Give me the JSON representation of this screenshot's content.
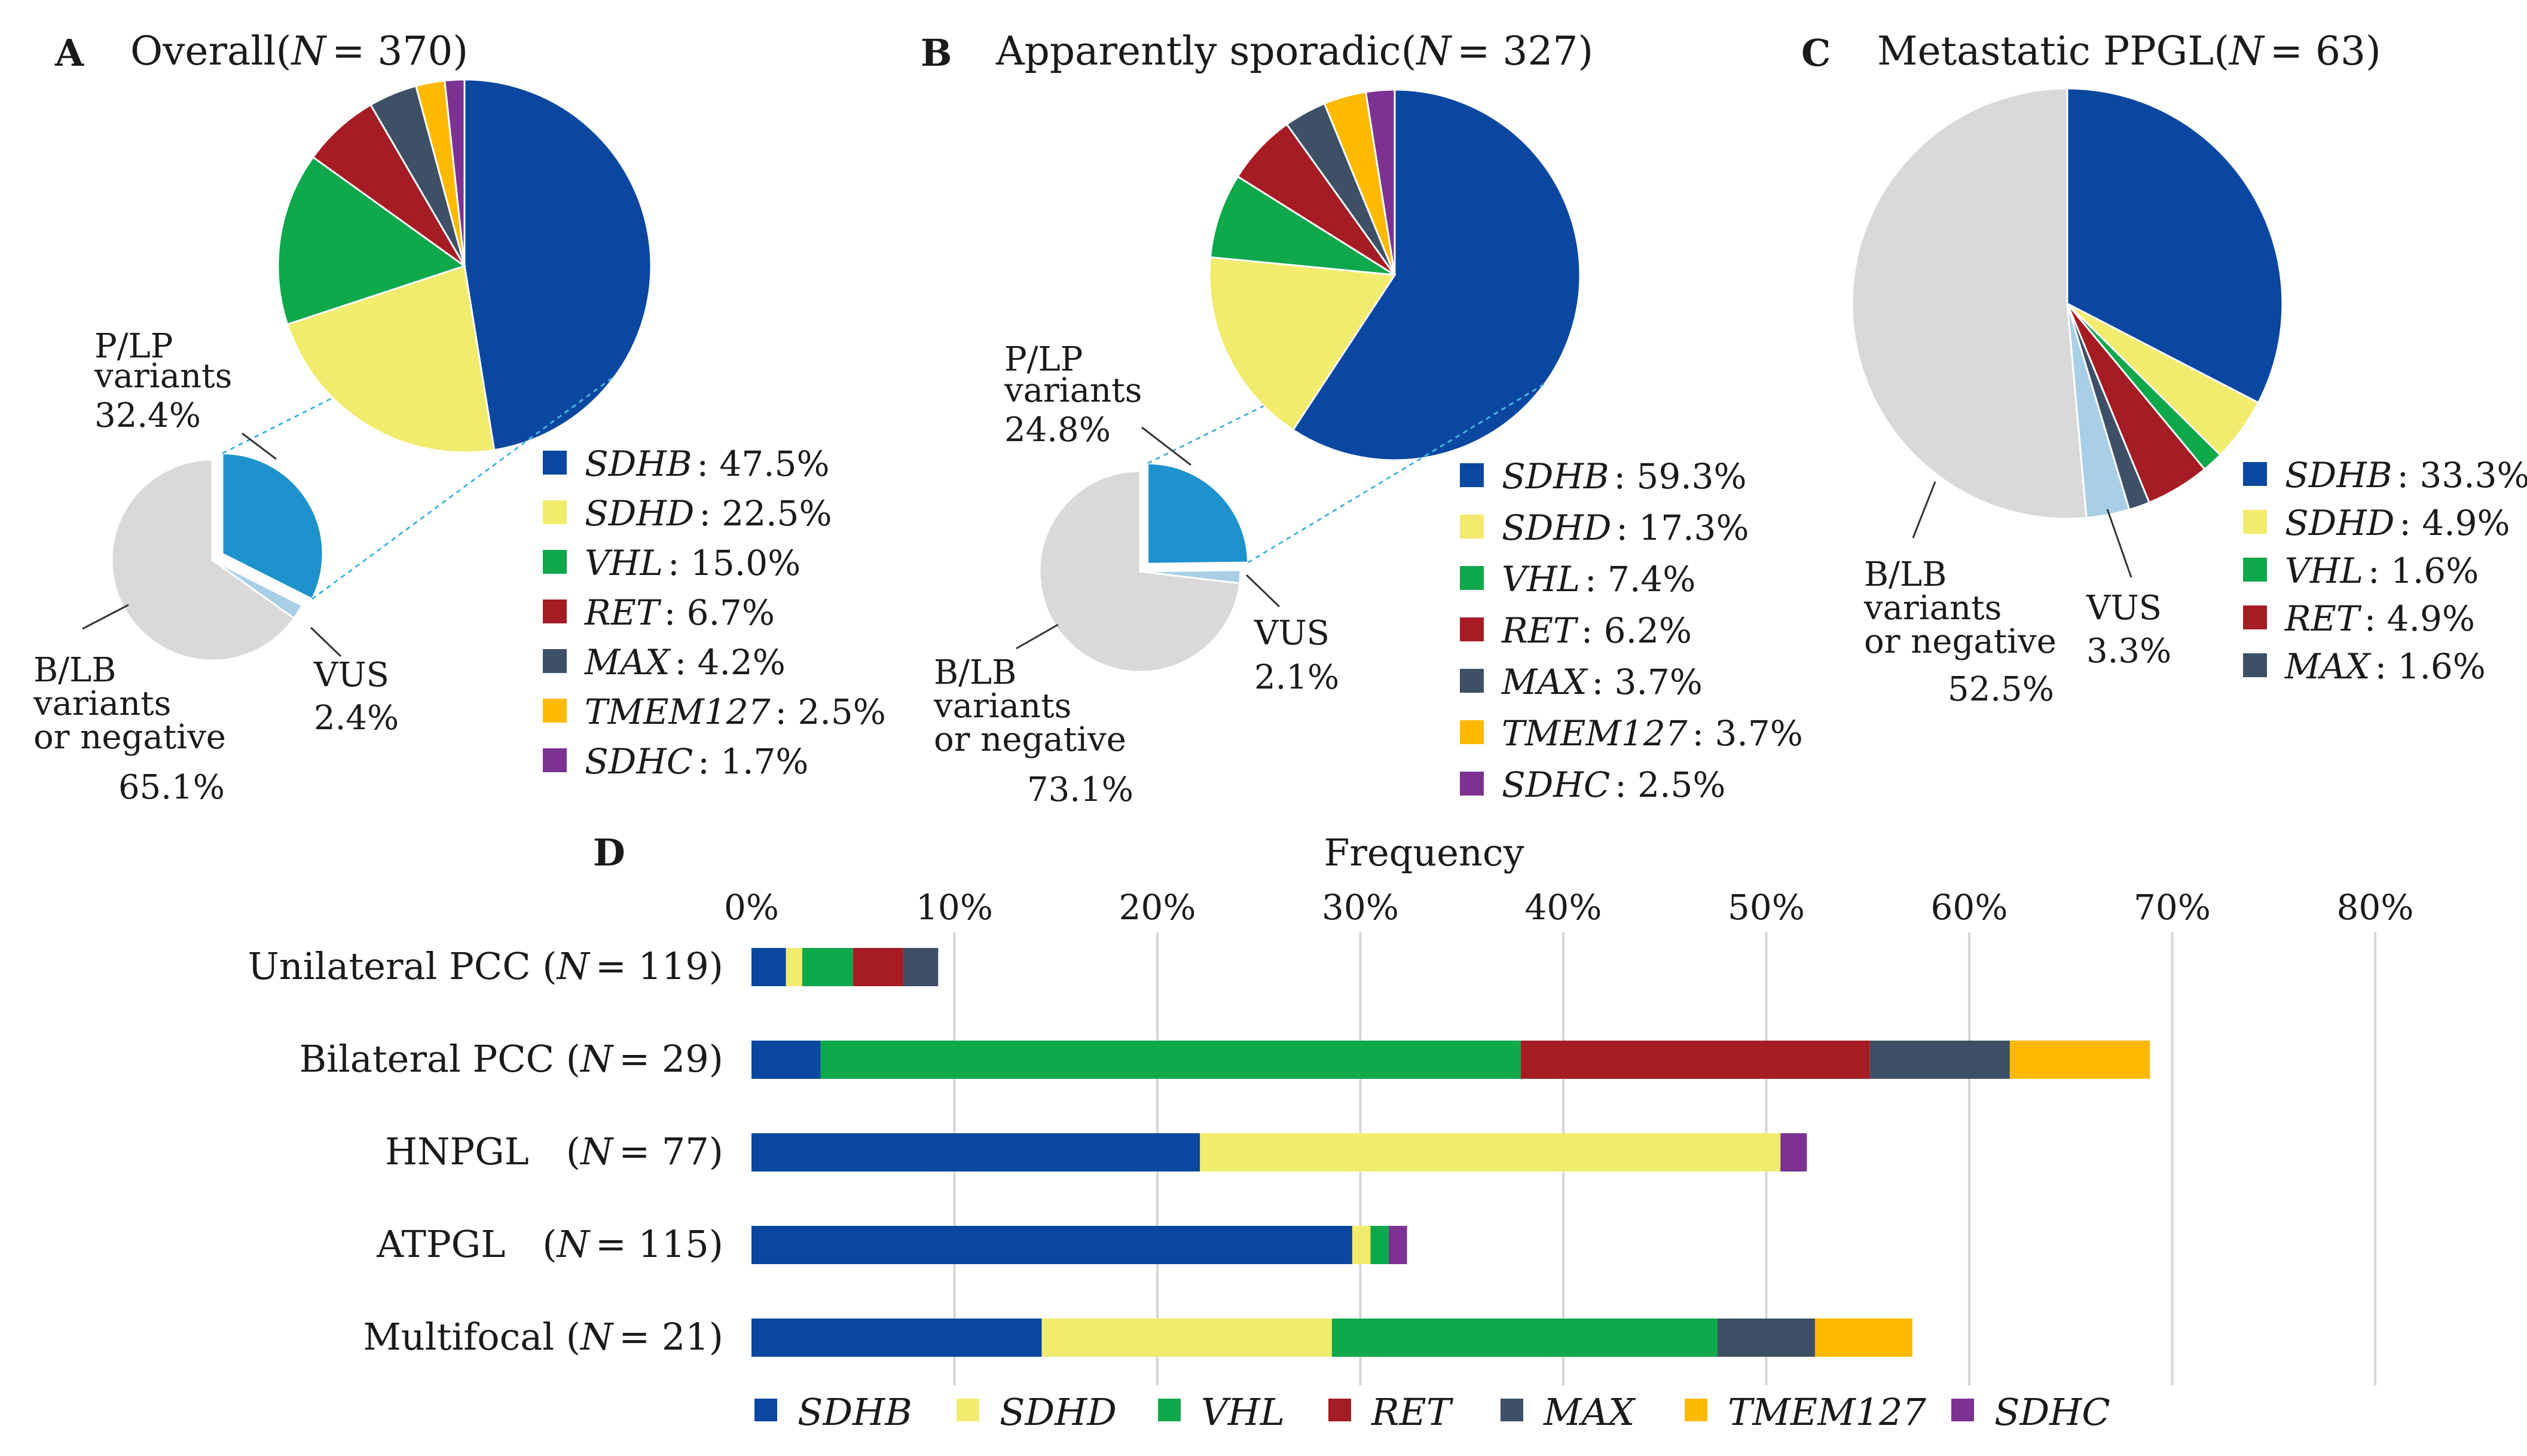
{
  "colors": {
    "SDHB": "#0a47a0",
    "SDHD": "#f2ec6e",
    "VHL": "#0fa84b",
    "RET": "#a51c24",
    "MAX": "#3d5065",
    "TMEM127": "#ffb900",
    "SDHC": "#7b3292",
    "PLP": "#1e92cc",
    "VUS": "#a8cfe6",
    "BLB": "#d9d9d9",
    "grid": "#d6d6d6",
    "leader": "#45b4e0"
  },
  "chart_data": [
    {
      "type": "pie",
      "panel": "A",
      "title": "Overall",
      "n_label": "N",
      "n_value": "= 370)",
      "title_open": "(",
      "outer_slices": [
        {
          "name": "B/LB variants or negative",
          "value": 65.1
        },
        {
          "name": "P/LP variants",
          "value": 32.4
        },
        {
          "name": "VUS",
          "value": 2.4
        }
      ],
      "outer_labels": {
        "plp_line1": "P/LP",
        "plp_line2": "variants",
        "plp_pct": "32.4%",
        "vus": "VUS",
        "vus_pct": "2.4%",
        "blb_line1": "B/LB",
        "blb_line2": "variants",
        "blb_line3": "or negative",
        "blb_pct": "65.1%"
      },
      "inner_slices": [
        {
          "name": "SDHB",
          "value": 47.5,
          "label": "SDHB",
          "pct": ": 47.5%"
        },
        {
          "name": "SDHD",
          "value": 22.5,
          "label": "SDHD",
          "pct": ": 22.5%"
        },
        {
          "name": "VHL",
          "value": 15.0,
          "label": "VHL",
          "pct": ": 15.0%"
        },
        {
          "name": "RET",
          "value": 6.7,
          "label": "RET",
          "pct": ": 6.7%"
        },
        {
          "name": "MAX",
          "value": 4.2,
          "label": "MAX",
          "pct": ": 4.2%"
        },
        {
          "name": "TMEM127",
          "value": 2.5,
          "label": "TMEM127",
          "pct": ": 2.5%"
        },
        {
          "name": "SDHC",
          "value": 1.7,
          "label": "SDHC",
          "pct": ": 1.7%"
        }
      ]
    },
    {
      "type": "pie",
      "panel": "B",
      "title": "Apparently sporadic",
      "n_label": "N",
      "n_value": "= 327)",
      "title_open": "(",
      "outer_slices": [
        {
          "name": "B/LB variants or negative",
          "value": 73.1
        },
        {
          "name": "P/LP variants",
          "value": 24.8
        },
        {
          "name": "VUS",
          "value": 2.1
        }
      ],
      "outer_labels": {
        "plp_line1": "P/LP",
        "plp_line2": "variants",
        "plp_pct": "24.8%",
        "vus": "VUS",
        "vus_pct": "2.1%",
        "blb_line1": "B/LB",
        "blb_line2": "variants",
        "blb_line3": "or negative",
        "blb_pct": "73.1%"
      },
      "inner_slices": [
        {
          "name": "SDHB",
          "value": 59.3,
          "label": "SDHB",
          "pct": ": 59.3%"
        },
        {
          "name": "SDHD",
          "value": 17.3,
          "label": "SDHD",
          "pct": ": 17.3%"
        },
        {
          "name": "VHL",
          "value": 7.4,
          "label": "VHL",
          "pct": ": 7.4%"
        },
        {
          "name": "RET",
          "value": 6.2,
          "label": "RET",
          "pct": ": 6.2%"
        },
        {
          "name": "MAX",
          "value": 3.7,
          "label": "MAX",
          "pct": ": 3.7%"
        },
        {
          "name": "TMEM127",
          "value": 3.7,
          "label": "TMEM127",
          "pct": ": 3.7%"
        },
        {
          "name": "SDHC",
          "value": 2.5,
          "label": "SDHC",
          "pct": ": 2.5%"
        }
      ]
    },
    {
      "type": "pie",
      "panel": "C",
      "title": "Metastatic PPGL",
      "n_label": "N",
      "n_value": "= 63)",
      "title_open": "(",
      "slices": [
        {
          "name": "SDHB",
          "value": 33.3,
          "label": "SDHB",
          "pct": ": 33.3%"
        },
        {
          "name": "SDHD",
          "value": 4.9,
          "label": "SDHD",
          "pct": ": 4.9%"
        },
        {
          "name": "VHL",
          "value": 1.6,
          "label": "VHL",
          "pct": ": 1.6%"
        },
        {
          "name": "RET",
          "value": 4.9,
          "label": "RET",
          "pct": ": 4.9%"
        },
        {
          "name": "MAX",
          "value": 1.6,
          "label": "MAX",
          "pct": ": 1.6%"
        },
        {
          "name": "VUS",
          "value": 3.3
        },
        {
          "name": "B/LB variants or negative",
          "value": 52.5
        }
      ],
      "outer_labels": {
        "blb_line1": "B/LB",
        "blb_line2": "variants",
        "blb_line3": "or negative",
        "blb_pct": "52.5%",
        "vus": "VUS",
        "vus_pct": "3.3%"
      }
    },
    {
      "type": "bar",
      "orientation": "horizontal",
      "stacked": true,
      "panel": "D",
      "xlabel": "Frequency",
      "xlim": [
        0,
        80
      ],
      "ticks": [
        "0%",
        "10%",
        "20%",
        "30%",
        "40%",
        "50%",
        "60%",
        "70%",
        "80%"
      ],
      "categories": [
        {
          "pre": "Unilateral PCC (",
          "n": "N",
          "post": "= 119)"
        },
        {
          "pre": "Bilateral PCC (",
          "n": "N",
          "post": "= 29)"
        },
        {
          "pre": "HNPGL　(",
          "n": "N",
          "post": "= 77)"
        },
        {
          "pre": "ATPGL　(",
          "n": "N",
          "post": "= 115)"
        },
        {
          "pre": "Multifocal (",
          "n": "N",
          "post": "= 21)"
        }
      ],
      "series": [
        {
          "name": "SDHB",
          "values": [
            1.7,
            3.4,
            22.1,
            29.6,
            14.3
          ]
        },
        {
          "name": "SDHD",
          "values": [
            0.8,
            0,
            28.6,
            0.9,
            14.3
          ]
        },
        {
          "name": "VHL",
          "values": [
            2.5,
            34.5,
            0,
            0.9,
            19.0
          ]
        },
        {
          "name": "RET",
          "values": [
            2.5,
            17.2,
            0,
            0,
            0
          ]
        },
        {
          "name": "MAX",
          "values": [
            1.7,
            6.9,
            0,
            0,
            4.8
          ]
        },
        {
          "name": "TMEM127",
          "values": [
            0,
            6.9,
            0,
            0,
            4.8
          ]
        },
        {
          "name": "SDHC",
          "values": [
            0,
            0,
            1.3,
            0.9,
            0
          ]
        }
      ]
    }
  ]
}
